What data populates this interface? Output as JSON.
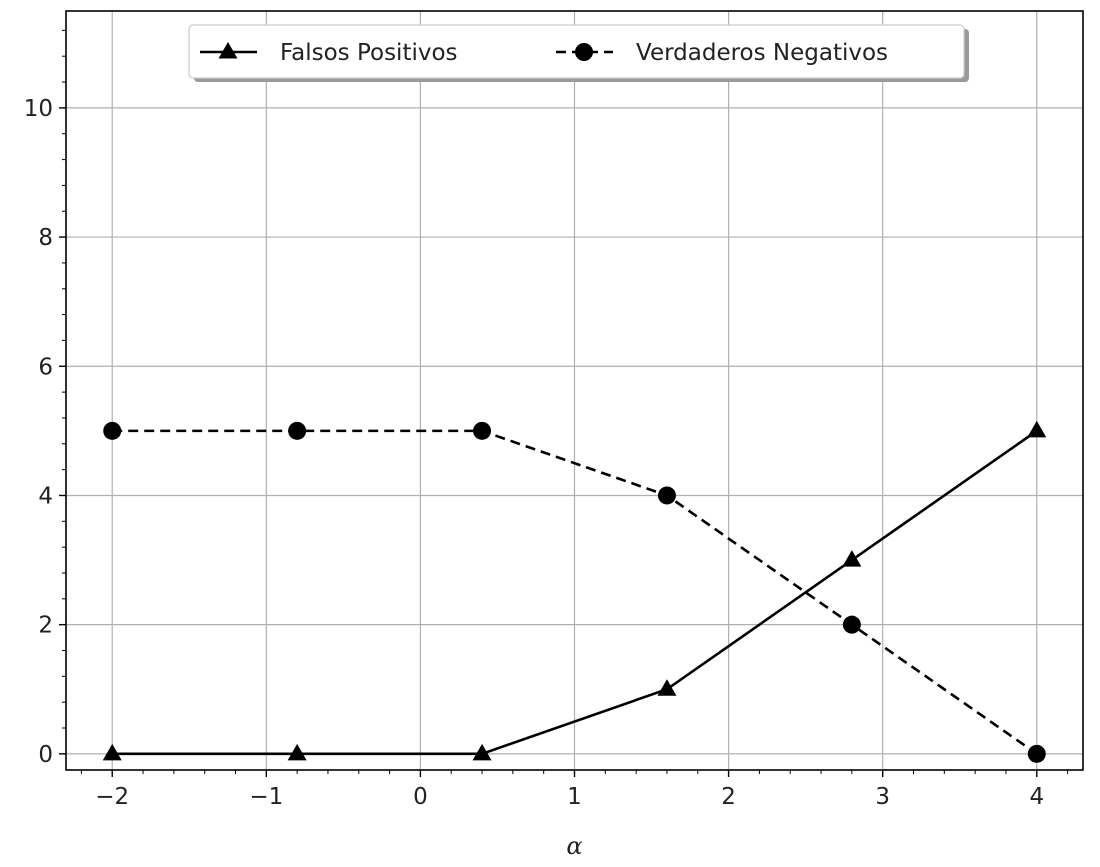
{
  "chart_data": {
    "type": "line",
    "title": "",
    "xlabel": "α",
    "ylabel": "",
    "x": [
      -2,
      -0.8,
      0.4,
      1.6,
      2.8,
      4
    ],
    "series": [
      {
        "name": "Falsos Positivos",
        "values": [
          0,
          0,
          0,
          1,
          3,
          5
        ],
        "marker": "triangle",
        "linestyle": "solid",
        "color": "#000000"
      },
      {
        "name": "Verdaderos Negativos",
        "values": [
          5,
          5,
          5,
          4,
          2,
          0
        ],
        "marker": "circle",
        "linestyle": "dashed",
        "color": "#000000"
      }
    ],
    "xlim": [
      -2.3,
      4.3
    ],
    "ylim": [
      -0.25,
      11.5
    ],
    "xticks": [
      -2,
      -1,
      0,
      1,
      2,
      3,
      4
    ],
    "xtick_labels": [
      "−2",
      "−1",
      "0",
      "1",
      "2",
      "3",
      "4"
    ],
    "yticks": [
      0,
      2,
      4,
      6,
      8,
      10
    ],
    "ytick_labels": [
      "0",
      "2",
      "4",
      "6",
      "8",
      "10"
    ],
    "grid": true,
    "legend_position": "upper-center"
  }
}
